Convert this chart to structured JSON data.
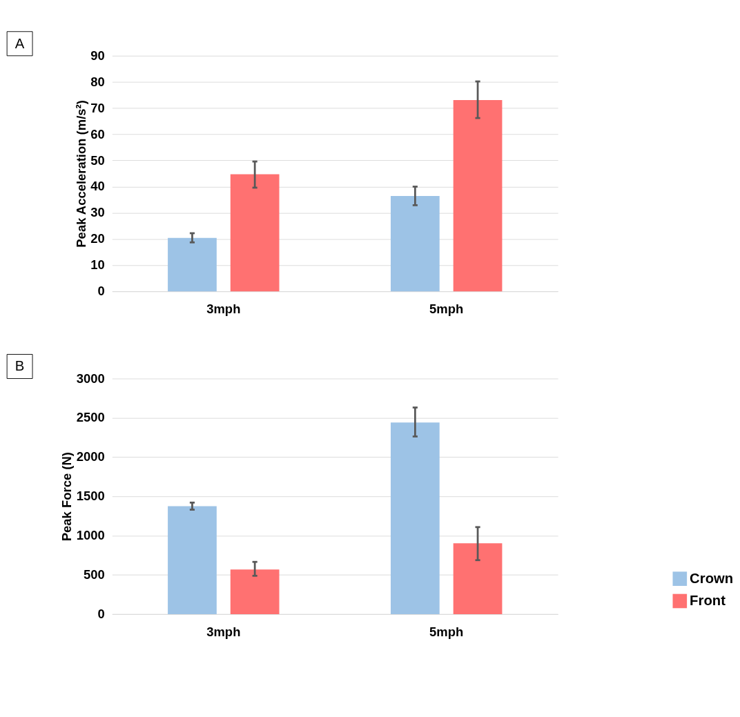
{
  "chart_data": [
    {
      "type": "bar",
      "ylabel": "Peak Acceleration (m/s²)",
      "categories": [
        "3mph",
        "5mph"
      ],
      "annotations": [
        "A"
      ],
      "ylim": [
        0,
        90
      ],
      "yticks": [
        0,
        10,
        20,
        30,
        40,
        50,
        60,
        70,
        80,
        90
      ],
      "grid": "y",
      "legend": "bottom right",
      "series": [
        {
          "name": "Crown",
          "color": "#9dc3e6",
          "values": [
            20.4,
            36.4
          ],
          "errors": [
            [
              18.7,
              22.2
            ],
            [
              32.9,
              40
            ]
          ]
        },
        {
          "name": "Front",
          "color": "#ff7171",
          "values": [
            44.7,
            73.1
          ],
          "errors": [
            [
              39.6,
              49.6
            ],
            [
              66.2,
              80.2
            ]
          ]
        }
      ]
    },
    {
      "type": "bar",
      "ylabel": "Peak Force (N)",
      "categories": [
        "3mph",
        "5mph"
      ],
      "annotations": [
        "B"
      ],
      "ylim": [
        0,
        3000
      ],
      "yticks": [
        0,
        500,
        {
          "value": 1000,
          "label": "1000"
        },
        {
          "value": 1500,
          "label": "1500"
        },
        {
          "value": 2000,
          "label": "2000"
        },
        {
          "value": 2500,
          "label": "2500"
        },
        {
          "value": 3000,
          "label": "3000"
        }
      ],
      "grid": "y",
      "legend": "bottom right",
      "series": [
        {
          "name": "Crown",
          "color": "#9dc3e6",
          "values": [
            1375,
            2439
          ],
          "errors": [
            [
              1330,
              1420
            ],
            [
              2262,
              2631
            ]
          ]
        },
        {
          "name": "Front",
          "color": "#ff7171",
          "values": [
            569,
            902
          ],
          "errors": [
            [
              488,
              665
            ],
            [
              687,
              1108
            ]
          ]
        }
      ]
    }
  ]
}
